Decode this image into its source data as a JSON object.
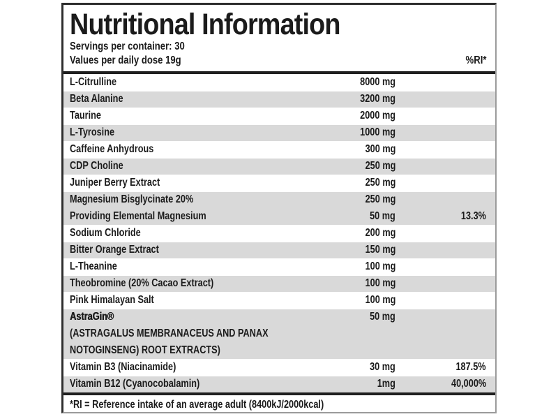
{
  "label": {
    "title": "Nutritional Information",
    "servings_line": "Servings per container: 30",
    "values_line": "Values per daily dose 19g",
    "ri_header": "%RI*",
    "footnote": "*RI = Reference intake of an average adult (8400kJ/2000kcal)",
    "colors": {
      "row_shade": "#d9d9d9",
      "text": "#1b1b1b",
      "rule": "#1f1f1f",
      "border_dark": "#2e2e2e",
      "border_light": "#9b9b9b"
    },
    "rows": [
      {
        "name": "L-Citrulline",
        "amount": "8000 mg",
        "ri": "",
        "shaded": false
      },
      {
        "name": "Beta Alanine",
        "amount": "3200 mg",
        "ri": "",
        "shaded": true
      },
      {
        "name": "Taurine",
        "amount": "2000 mg",
        "ri": "",
        "shaded": false
      },
      {
        "name": "L-Tyrosine",
        "amount": "1000 mg",
        "ri": "",
        "shaded": true
      },
      {
        "name": "Caffeine Anhydrous",
        "amount": "300 mg",
        "ri": "",
        "shaded": false
      },
      {
        "name": "CDP Choline",
        "amount": "250 mg",
        "ri": "",
        "shaded": true
      },
      {
        "name": "Juniper Berry Extract",
        "amount": "250 mg",
        "ri": "",
        "shaded": false
      },
      {
        "name": "Magnesium Bisglycinate 20%",
        "amount": "250 mg",
        "ri": "",
        "shaded": true
      },
      {
        "name": "Providing Elemental Magnesium",
        "amount": "50 mg",
        "ri": "13.3%",
        "shaded": true,
        "continues": true
      },
      {
        "name": "Sodium Chloride",
        "amount": "200 mg",
        "ri": "",
        "shaded": false
      },
      {
        "name": "Bitter Orange Extract",
        "amount": "150 mg",
        "ri": "",
        "shaded": true
      },
      {
        "name": "L-Theanine",
        "amount": "100 mg",
        "ri": "",
        "shaded": false
      },
      {
        "name": "Theobromine (20% Cacao Extract)",
        "amount": "100 mg",
        "ri": "",
        "shaded": true
      },
      {
        "name": "Pink Himalayan Salt",
        "amount": "100 mg",
        "ri": "",
        "shaded": false
      },
      {
        "name": "AstraGin®",
        "amount": "50 mg",
        "ri": "",
        "shaded": true,
        "bold": true,
        "sublines": [
          "(ASTRAGALUS MEMBRANACEUS AND PANAX",
          "NOTOGINSENG) ROOT EXTRACTS)"
        ]
      },
      {
        "name": "Vitamin B3 (Niacinamide)",
        "amount": "30 mg",
        "ri": "187.5%",
        "shaded": false
      },
      {
        "name": "Vitamin B12 (Cyanocobalamin)",
        "amount": "1mg",
        "ri": "40,000%",
        "shaded": true
      }
    ]
  }
}
